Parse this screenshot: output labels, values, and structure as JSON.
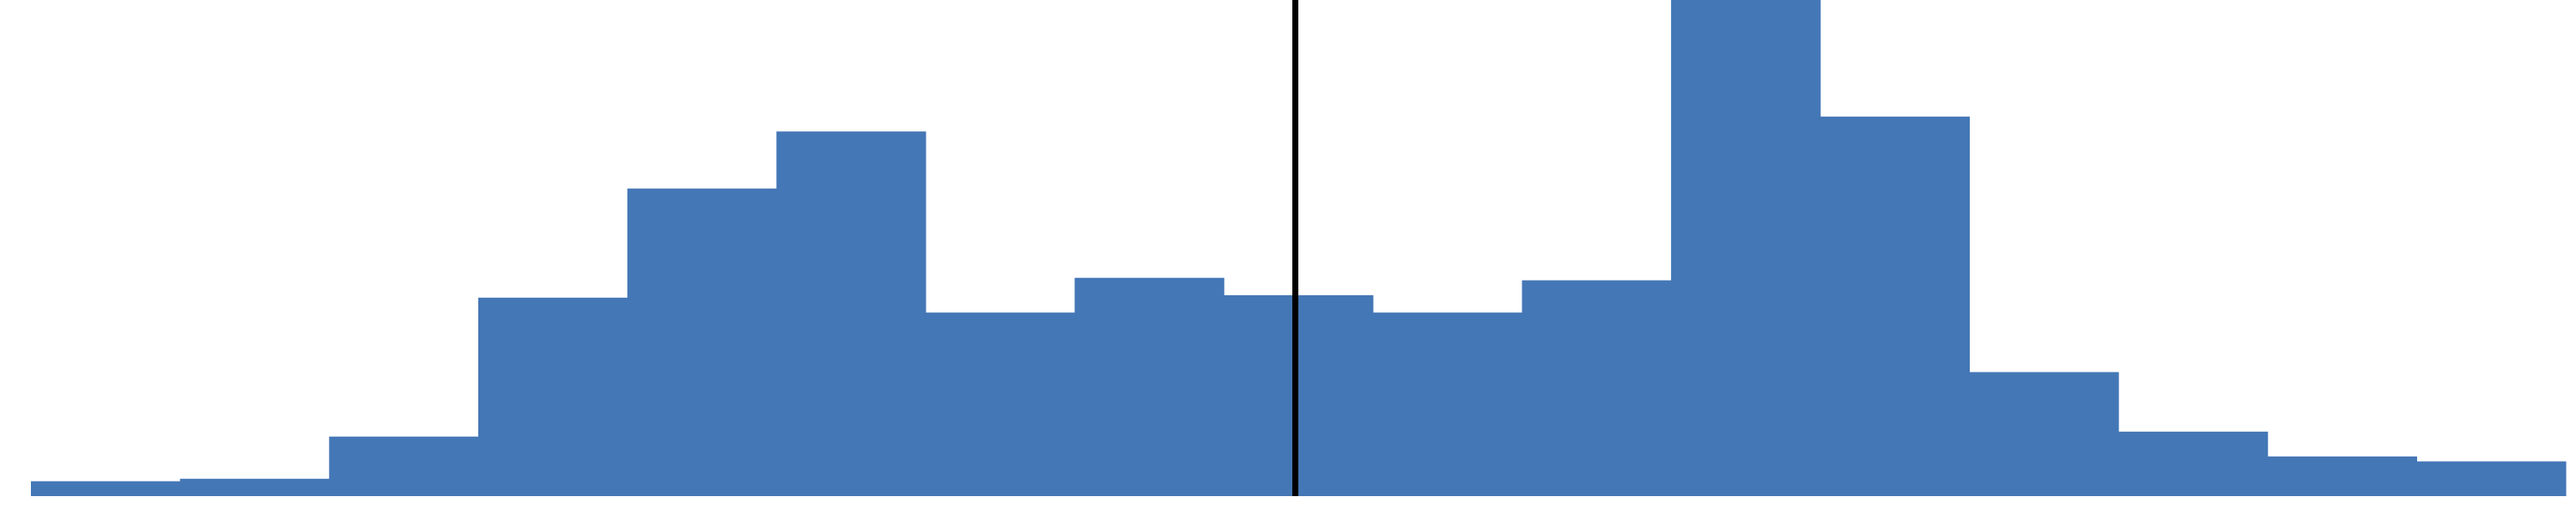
{
  "chart_data": {
    "type": "bar",
    "title": "",
    "xlabel": "",
    "ylabel": "",
    "legend": "none",
    "grid": false,
    "ylim": [
      0,
      100
    ],
    "values": [
      3,
      3.5,
      12,
      40,
      62,
      73.5,
      37,
      44,
      40.5,
      37,
      43.5,
      100,
      76.5,
      25,
      13,
      8,
      7
    ],
    "marker_after_bin": 8.48,
    "colors": {
      "bar": "#4477b6",
      "marker": "#000000",
      "background": "#ffffff"
    }
  }
}
